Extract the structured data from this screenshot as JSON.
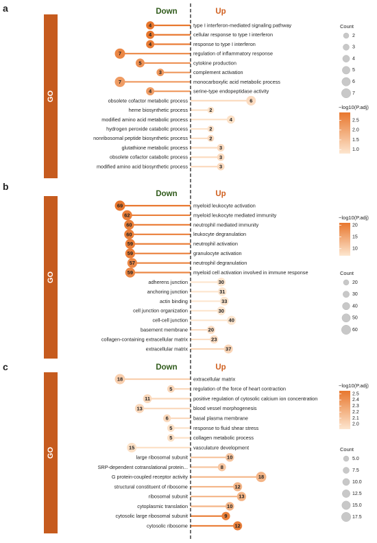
{
  "figure": {
    "dashed_divider": true,
    "divider_color": "#222222"
  },
  "chart_data": [
    {
      "panel_label": "a",
      "type": "bar",
      "orientation": "horizontal-diverging",
      "category_label": "GO",
      "title_down": "Down",
      "title_up": "Up",
      "rows": [
        {
          "term": "type I interferon-mediated signaling pathway",
          "direction": "down",
          "count": 4,
          "padj": 2.9
        },
        {
          "term": "cellular response to type I interferon",
          "direction": "down",
          "count": 4,
          "padj": 2.9
        },
        {
          "term": "response to type I interferon",
          "direction": "down",
          "count": 4,
          "padj": 2.8
        },
        {
          "term": "regulation of inflammatory response",
          "direction": "down",
          "count": 7,
          "padj": 2.6
        },
        {
          "term": "cytokine production",
          "direction": "down",
          "count": 5,
          "padj": 2.4
        },
        {
          "term": "complement activation",
          "direction": "down",
          "count": 3,
          "padj": 2.3
        },
        {
          "term": "monocarboxylic acid metabolic process",
          "direction": "down",
          "count": 7,
          "padj": 2.2
        },
        {
          "term": "serine-type endopeptidase activity",
          "direction": "down",
          "count": 4,
          "padj": 2.2
        },
        {
          "term": "obsolete cofactor metabolic process",
          "direction": "up",
          "count": 6,
          "padj": 1.0
        },
        {
          "term": "heme biosynthetic process",
          "direction": "up",
          "count": 2,
          "padj": 0.9
        },
        {
          "term": "modified amino acid metabolic process",
          "direction": "up",
          "count": 4,
          "padj": 0.9
        },
        {
          "term": "hydrogen peroxide catabolic process",
          "direction": "up",
          "count": 2,
          "padj": 0.85
        },
        {
          "term": "nonribosomal peptide biosynthetic process",
          "direction": "up",
          "count": 2,
          "padj": 1.0
        },
        {
          "term": "glutathione metabolic process",
          "direction": "up",
          "count": 3,
          "padj": 1.0
        },
        {
          "term": "obsolete cofactor catabolic process",
          "direction": "up",
          "count": 3,
          "padj": 1.0
        },
        {
          "term": "modified amino acid biosynthetic process",
          "direction": "up",
          "count": 3,
          "padj": 1.0
        }
      ],
      "color_legend": {
        "title": "−log10(P.adj)",
        "ticks": [
          "2.5",
          "2.0",
          "1.5",
          "1.0"
        ],
        "range": [
          0.8,
          2.9
        ],
        "low_color": "#fde6cf",
        "high_color": "#e8772e"
      },
      "size_legend": {
        "title": "Count",
        "values": [
          "2",
          "3",
          "4",
          "5",
          "6",
          "7"
        ],
        "range": [
          2,
          7
        ]
      }
    },
    {
      "panel_label": "b",
      "type": "bar",
      "orientation": "horizontal-diverging",
      "category_label": "GO",
      "title_down": "Down",
      "title_up": "Up",
      "rows": [
        {
          "term": "myeloid leukocyte activation",
          "direction": "down",
          "count": 69,
          "padj": 21
        },
        {
          "term": "myeloid leukocyte mediated immunity",
          "direction": "down",
          "count": 62,
          "padj": 20
        },
        {
          "term": "neutrophil mediated immunity",
          "direction": "down",
          "count": 60,
          "padj": 20
        },
        {
          "term": "leukocyte degranulation",
          "direction": "down",
          "count": 60,
          "padj": 20
        },
        {
          "term": "neutrophil activation",
          "direction": "down",
          "count": 59,
          "padj": 20
        },
        {
          "term": "granulocyte activation",
          "direction": "down",
          "count": 59,
          "padj": 20
        },
        {
          "term": "neutrophil degranulation",
          "direction": "down",
          "count": 57,
          "padj": 19
        },
        {
          "term": "myeloid cell activation involved in immune response",
          "direction": "down",
          "count": 59,
          "padj": 19
        },
        {
          "term": "adherens junction",
          "direction": "up",
          "count": 30,
          "padj": 7
        },
        {
          "term": "anchoring junction",
          "direction": "up",
          "count": 31,
          "padj": 7
        },
        {
          "term": "actin binding",
          "direction": "up",
          "count": 33,
          "padj": 7
        },
        {
          "term": "cell junction organization",
          "direction": "up",
          "count": 30,
          "padj": 7
        },
        {
          "term": "cell-cell junction",
          "direction": "up",
          "count": 40,
          "padj": 7
        },
        {
          "term": "basement membrane",
          "direction": "up",
          "count": 20,
          "padj": 8
        },
        {
          "term": "collagen-containing extracellular matrix",
          "direction": "up",
          "count": 23,
          "padj": 8
        },
        {
          "term": "extracellular matrix",
          "direction": "up",
          "count": 37,
          "padj": 9
        }
      ],
      "color_legend": {
        "title": "−log10(P.adj)",
        "ticks": [
          "20",
          "15",
          "10"
        ],
        "range": [
          7,
          21
        ],
        "low_color": "#fde6cf",
        "high_color": "#e8772e"
      },
      "size_legend": {
        "title": "Count",
        "values": [
          "20",
          "30",
          "40",
          "50",
          "60"
        ],
        "range": [
          20,
          69
        ]
      }
    },
    {
      "panel_label": "c",
      "type": "bar",
      "orientation": "horizontal-diverging",
      "category_label": "GO",
      "title_down": "Down",
      "title_up": "Up",
      "rows": [
        {
          "term": "extracellular matrix",
          "direction": "down",
          "count": 18,
          "padj": 2.05
        },
        {
          "term": "regulation of the force of heart contraction",
          "direction": "down",
          "count": 5,
          "padj": 2.0
        },
        {
          "term": "positive regulation of cytosolic calcium ion concentration",
          "direction": "down",
          "count": 11,
          "padj": 2.0
        },
        {
          "term": "blood vessel morphogenesis",
          "direction": "down",
          "count": 13,
          "padj": 2.0
        },
        {
          "term": "basal plasma membrane",
          "direction": "down",
          "count": 6,
          "padj": 2.0
        },
        {
          "term": "response to fluid shear stress",
          "direction": "down",
          "count": 5,
          "padj": 1.95
        },
        {
          "term": "collagen metabolic process",
          "direction": "down",
          "count": 5,
          "padj": 1.95
        },
        {
          "term": "vasculature development",
          "direction": "down",
          "count": 15,
          "padj": 1.95
        },
        {
          "term": "large ribosomal subunit",
          "direction": "up",
          "count": 10,
          "padj": 2.1
        },
        {
          "term": "SRP-dependent cotranslational protein...",
          "direction": "up",
          "count": 8,
          "padj": 2.1
        },
        {
          "term": "G protein-coupled receptor activity",
          "direction": "up",
          "count": 18,
          "padj": 2.2
        },
        {
          "term": "structural constituent of ribosome",
          "direction": "up",
          "count": 12,
          "padj": 2.2
        },
        {
          "term": "ribosomal subunit",
          "direction": "up",
          "count": 13,
          "padj": 2.2
        },
        {
          "term": "cytoplasmic translation",
          "direction": "up",
          "count": 10,
          "padj": 2.2
        },
        {
          "term": "cytosolic large ribosomal subunit",
          "direction": "up",
          "count": 9,
          "padj": 2.5
        },
        {
          "term": "cytosolic ribosome",
          "direction": "up",
          "count": 12,
          "padj": 2.5
        }
      ],
      "color_legend": {
        "title": "−log10(P.adj)",
        "ticks": [
          "2.5",
          "2.4",
          "2.3",
          "2.2",
          "2.1",
          "2.0"
        ],
        "range": [
          1.92,
          2.55
        ],
        "low_color": "#fde6cf",
        "high_color": "#e8772e"
      },
      "size_legend": {
        "title": "Count",
        "values": [
          "5.0",
          "7.5",
          "10.0",
          "12.5",
          "15.0",
          "17.5"
        ],
        "range": [
          5,
          18
        ]
      }
    }
  ],
  "colors": {
    "go_bar": "#c65b1e",
    "down_title": "#2f5a1a",
    "up_title": "#d06020",
    "text": "#222222",
    "size_circle": "#c8c8c8",
    "size_circle_edge": "#b0b0b0"
  }
}
